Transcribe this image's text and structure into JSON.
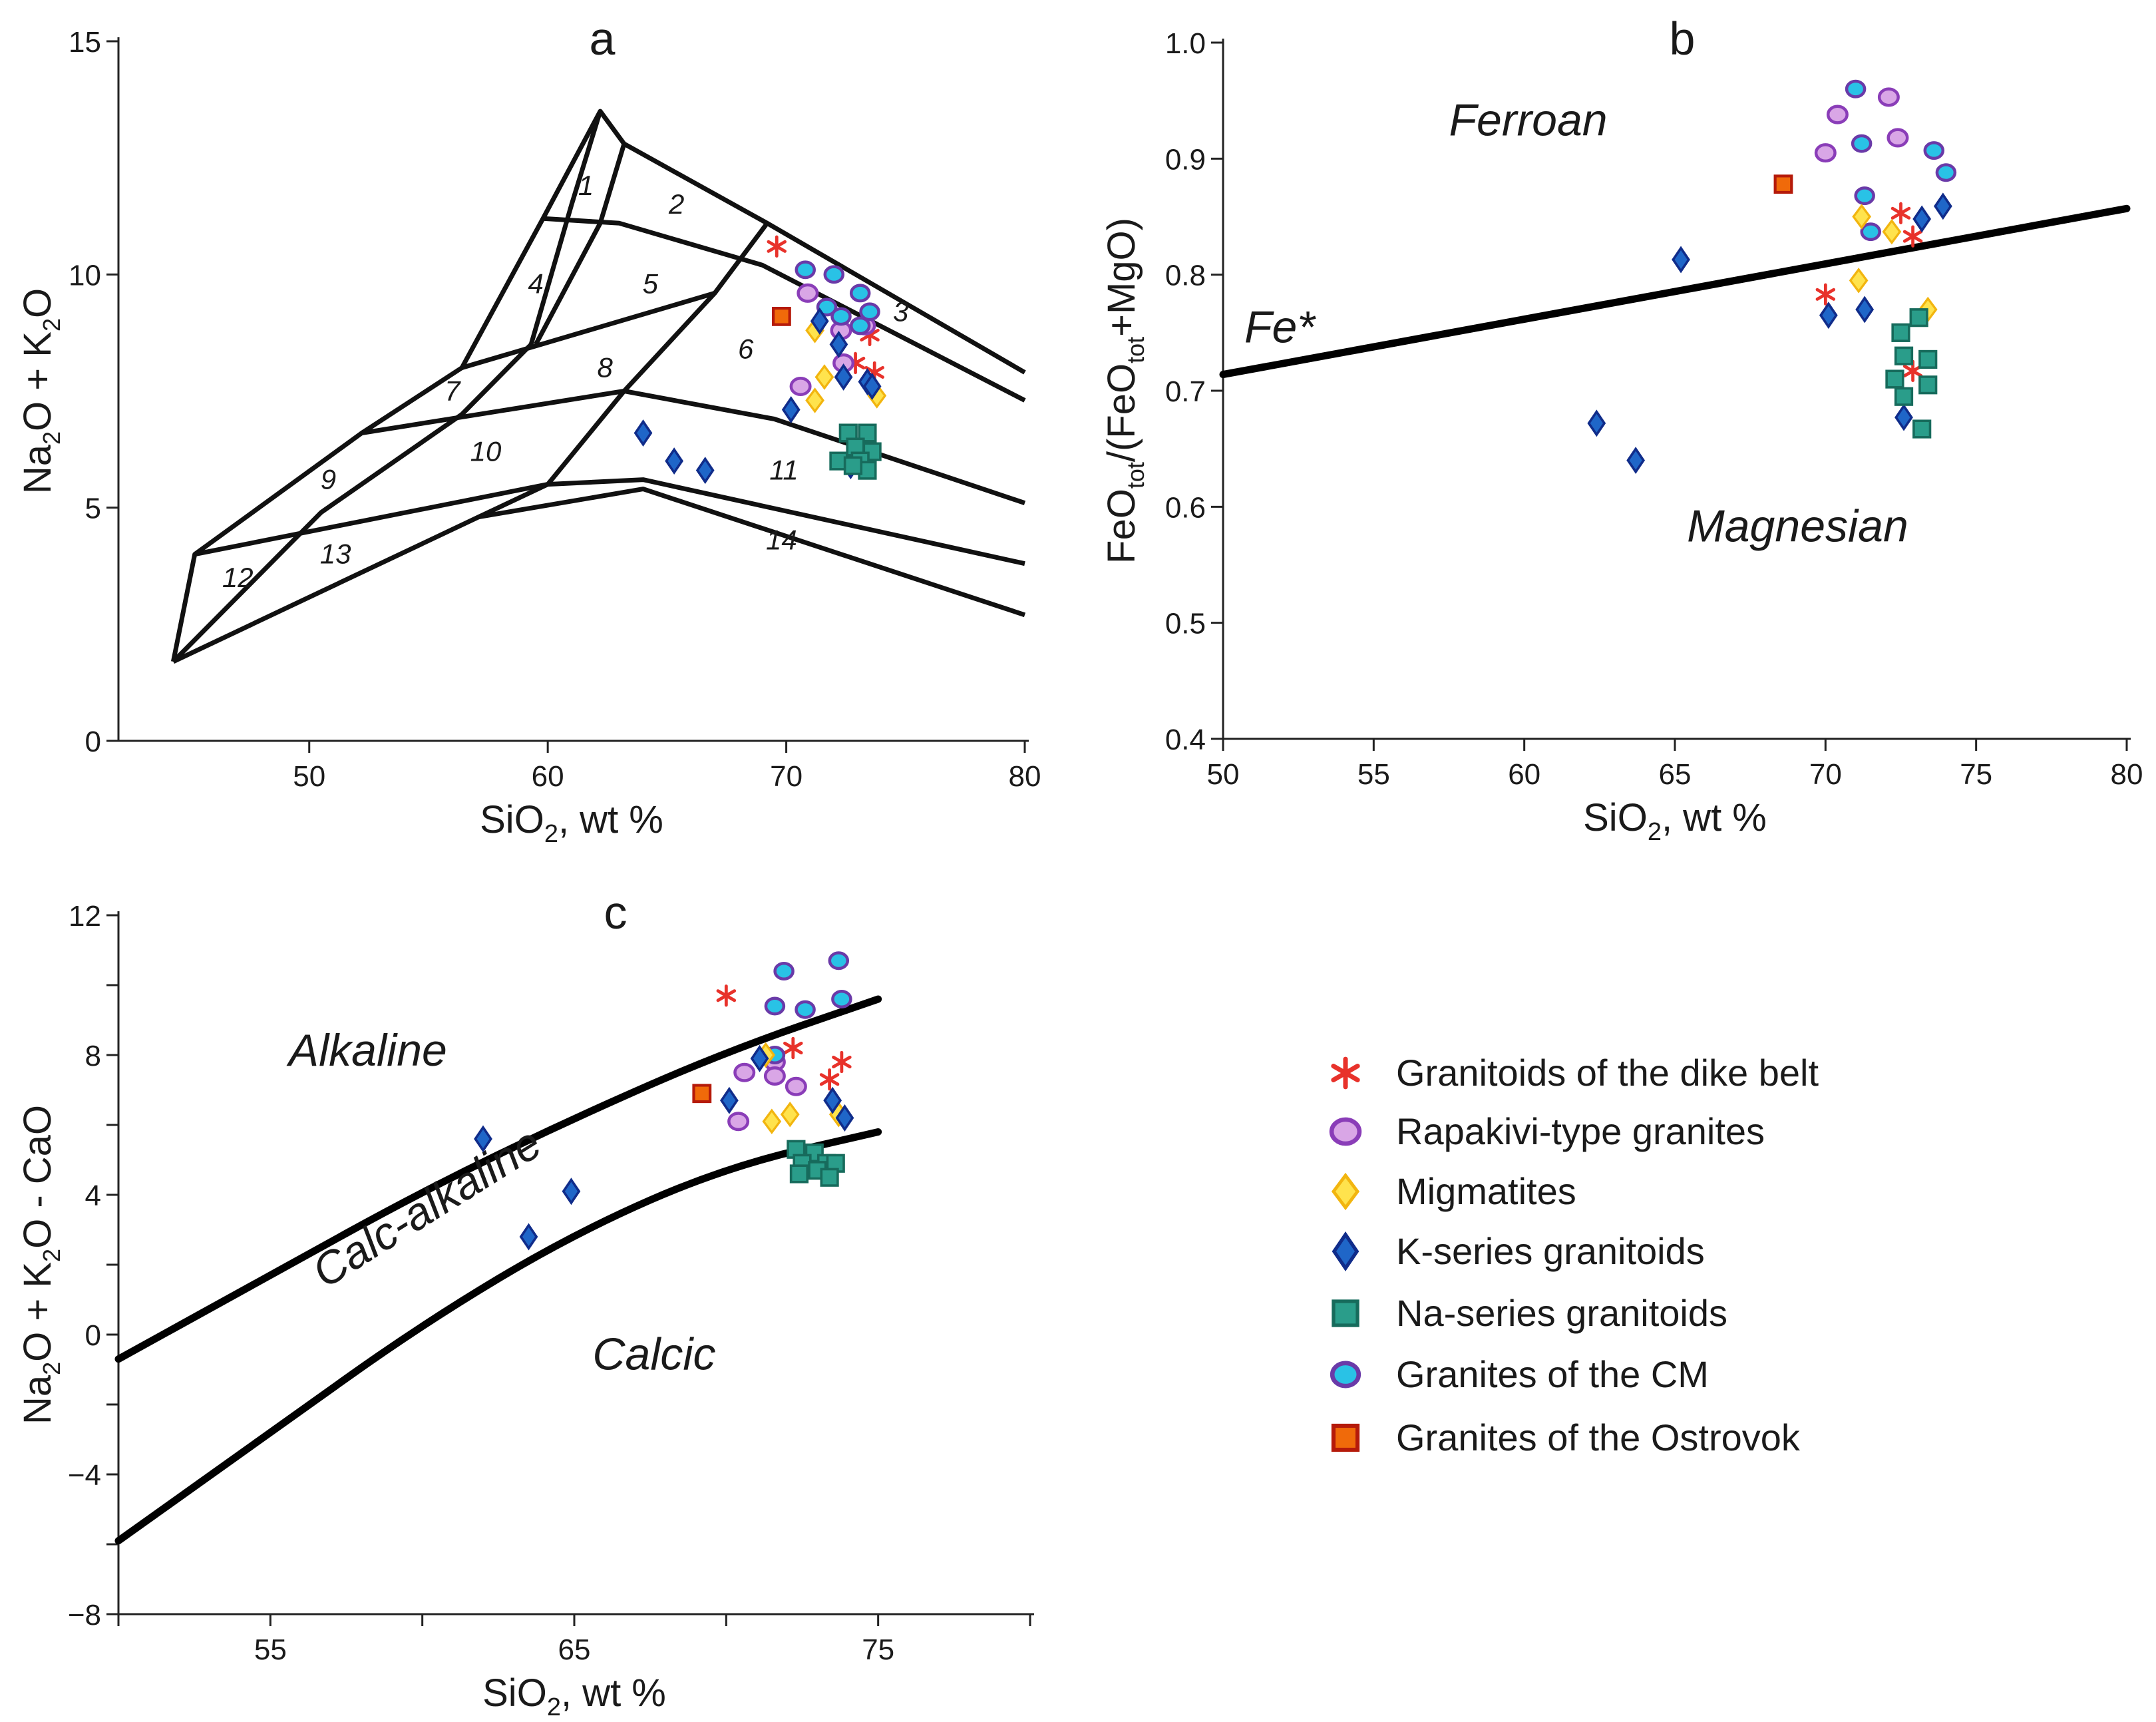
{
  "colors": {
    "dike_belt": "#e8322b",
    "rapakivi_fill": "#d9a6e6",
    "rapakivi_stroke": "#8a3db8",
    "migmatite_fill": "#ffe34d",
    "migmatite_stroke": "#f2b50f",
    "kseries_fill": "#1f66c8",
    "kseries_stroke": "#102c8a",
    "naseries_fill": "#2a9d8a",
    "naseries_stroke": "#176b5c",
    "cm_fill": "#29c2e6",
    "cm_stroke": "#6a3aa8",
    "ostrovok_fill": "#f06a0a",
    "ostrovok_stroke": "#b51a0a"
  },
  "legend": [
    {
      "key": "dike_belt",
      "label": "Granitoids of the dike belt",
      "marker": "asterisk-icon"
    },
    {
      "key": "rapakivi",
      "label": "Rapakivi-type granites",
      "marker": "circle-icon"
    },
    {
      "key": "migmatite",
      "label": "Migmatites",
      "marker": "diamond-icon"
    },
    {
      "key": "kseries",
      "label": "K-series granitoids",
      "marker": "diamond-icon"
    },
    {
      "key": "naseries",
      "label": "Na-series granitoids",
      "marker": "square-icon"
    },
    {
      "key": "cm",
      "label": "Granites of the CM",
      "marker": "circle-icon"
    },
    {
      "key": "ostrovok",
      "label": "Granites of the Ostrovok",
      "marker": "square-icon"
    }
  ],
  "chart_data": [
    {
      "id": "a",
      "type": "scatter",
      "title": "a",
      "xlabel": "SiO₂, wt %",
      "ylabel": "Na₂O + K₂O",
      "xlim": [
        42,
        80
      ],
      "ylim": [
        0,
        15
      ],
      "xticks": [
        50,
        60,
        70,
        80
      ],
      "yticks": [
        0,
        5,
        10,
        15
      ],
      "xtick_labels": [
        "50",
        "60",
        "70",
        "80"
      ],
      "ytick_labels": [
        "0",
        "5",
        "10",
        "15"
      ],
      "field_lines": [
        [
          [
            44.3,
            1.7
          ],
          [
            45.2,
            4.0
          ],
          [
            52.2,
            6.6
          ],
          [
            56.4,
            8.0
          ],
          [
            59.8,
            11.2
          ],
          [
            62.2,
            13.5
          ],
          [
            63.2,
            12.8
          ],
          [
            69.2,
            11.1
          ],
          [
            80,
            7.9
          ]
        ],
        [
          [
            44.3,
            1.7
          ],
          [
            57.1,
            4.8
          ],
          [
            60,
            5.5
          ],
          [
            63.2,
            7.5
          ],
          [
            67,
            9.6
          ],
          [
            69.2,
            11.1
          ]
        ],
        [
          [
            57.1,
            4.8
          ],
          [
            64,
            5.4
          ],
          [
            80,
            2.7
          ]
        ],
        [
          [
            45.2,
            4.0
          ],
          [
            60,
            5.5
          ],
          [
            64,
            5.6
          ],
          [
            80,
            3.8
          ]
        ],
        [
          [
            52.2,
            6.6
          ],
          [
            63.2,
            7.5
          ],
          [
            69.5,
            6.9
          ],
          [
            80,
            5.1
          ]
        ],
        [
          [
            56.4,
            8.0
          ],
          [
            67,
            9.6
          ]
        ],
        [
          [
            59.8,
            11.2
          ],
          [
            63,
            11.1
          ],
          [
            69,
            10.2
          ],
          [
            80,
            7.3
          ]
        ],
        [
          [
            62.2,
            13.5
          ],
          [
            61,
            11.5
          ],
          [
            59.3,
            8.5
          ],
          [
            56.4,
            7.0
          ],
          [
            50.5,
            4.9
          ],
          [
            44.3,
            1.7
          ]
        ],
        [
          [
            63.2,
            12.8
          ],
          [
            62.2,
            11.1
          ],
          [
            59.5,
            8.5
          ]
        ]
      ],
      "field_labels": [
        {
          "text": "1",
          "x": 61.6,
          "y": 11.9
        },
        {
          "text": "2",
          "x": 65.4,
          "y": 11.5
        },
        {
          "text": "3",
          "x": 74.8,
          "y": 9.2
        },
        {
          "text": "4",
          "x": 59.5,
          "y": 9.8
        },
        {
          "text": "5",
          "x": 64.3,
          "y": 9.8
        },
        {
          "text": "6",
          "x": 68.3,
          "y": 8.4
        },
        {
          "text": "7",
          "x": 56.0,
          "y": 7.5
        },
        {
          "text": "8",
          "x": 62.4,
          "y": 8.0
        },
        {
          "text": "9",
          "x": 50.8,
          "y": 5.6
        },
        {
          "text": "10",
          "x": 57.4,
          "y": 6.2
        },
        {
          "text": "11",
          "x": 69.9,
          "y": 5.8
        },
        {
          "text": "12",
          "x": 47.0,
          "y": 3.5
        },
        {
          "text": "13",
          "x": 51.1,
          "y": 4.0
        },
        {
          "text": "14",
          "x": 69.8,
          "y": 4.3
        }
      ],
      "series": [
        {
          "key": "dike_belt",
          "x": [
            69.6,
            73.5,
            72.9,
            73.7
          ],
          "y": [
            10.6,
            8.7,
            8.1,
            7.9
          ]
        },
        {
          "key": "rapakivi",
          "x": [
            70.9,
            72.3,
            70.6,
            72.4,
            73.3
          ],
          "y": [
            9.6,
            8.8,
            7.6,
            8.1,
            8.9
          ]
        },
        {
          "key": "cm",
          "x": [
            70.8,
            72.0,
            73.1,
            73.5,
            71.7,
            72.3,
            73.1
          ],
          "y": [
            10.1,
            10.0,
            9.6,
            9.2,
            9.3,
            9.1,
            8.9
          ]
        },
        {
          "key": "migmatite",
          "x": [
            71.2,
            71.6,
            71.2,
            73.8
          ],
          "y": [
            8.8,
            7.8,
            7.3,
            7.4
          ]
        },
        {
          "key": "kseries",
          "x": [
            71.4,
            72.2,
            72.4,
            73.4,
            73.6,
            70.2,
            64.0,
            65.3,
            66.6,
            72.7
          ],
          "y": [
            9.0,
            8.5,
            7.8,
            7.7,
            7.6,
            7.1,
            6.6,
            6.0,
            5.8,
            5.9
          ]
        },
        {
          "key": "naseries",
          "x": [
            72.6,
            73.4,
            72.9,
            73.6,
            72.2,
            73.1,
            73.4,
            72.8
          ],
          "y": [
            6.6,
            6.6,
            6.3,
            6.2,
            6.0,
            6.0,
            5.8,
            5.9
          ]
        },
        {
          "key": "ostrovok",
          "x": [
            69.8
          ],
          "y": [
            9.1
          ]
        }
      ]
    },
    {
      "id": "b",
      "type": "scatter",
      "title": "b",
      "xlabel": "SiO₂, wt %",
      "ylabel": "FeO_tot/(FeO_tot+MgO)",
      "xlim": [
        50,
        80
      ],
      "ylim": [
        0.4,
        1.0
      ],
      "xticks": [
        50,
        55,
        60,
        65,
        70,
        75,
        80
      ],
      "yticks": [
        0.4,
        0.5,
        0.6,
        0.7,
        0.8,
        0.9,
        1.0
      ],
      "xtick_labels": [
        "50",
        "55",
        "60",
        "65",
        "70",
        "75",
        "80"
      ],
      "ytick_labels": [
        "0.4",
        "0.5",
        "0.6",
        "0.7",
        "0.8",
        "0.9",
        "1.0"
      ],
      "boundary": {
        "label": "Fe*",
        "points": [
          [
            50,
            0.714
          ],
          [
            80,
            0.857
          ]
        ]
      },
      "regions": [
        {
          "text": "Ferroan",
          "x": 57.5,
          "y": 0.92
        },
        {
          "text": "Magnesian",
          "x": 65.4,
          "y": 0.57
        }
      ],
      "series": [
        {
          "key": "dike_belt",
          "x": [
            72.5,
            72.9,
            70.0,
            72.9
          ],
          "y": [
            0.853,
            0.833,
            0.783,
            0.717
          ]
        },
        {
          "key": "rapakivi",
          "x": [
            70.4,
            72.1,
            70.0,
            72.4
          ],
          "y": [
            0.938,
            0.953,
            0.905,
            0.918
          ]
        },
        {
          "key": "cm",
          "x": [
            71.0,
            71.2,
            73.6,
            74.0,
            71.3,
            71.5
          ],
          "y": [
            0.96,
            0.913,
            0.907,
            0.888,
            0.868,
            0.837
          ]
        },
        {
          "key": "migmatite",
          "x": [
            71.2,
            72.2,
            71.1,
            73.4
          ],
          "y": [
            0.85,
            0.837,
            0.795,
            0.77
          ]
        },
        {
          "key": "kseries",
          "x": [
            65.2,
            70.1,
            71.3,
            73.2,
            73.9,
            72.6,
            62.4,
            63.7
          ],
          "y": [
            0.813,
            0.765,
            0.77,
            0.848,
            0.859,
            0.677,
            0.672,
            0.64
          ]
        },
        {
          "key": "naseries",
          "x": [
            72.5,
            73.1,
            72.6,
            73.4,
            72.3,
            73.4,
            72.6,
            73.2
          ],
          "y": [
            0.75,
            0.763,
            0.73,
            0.727,
            0.71,
            0.705,
            0.695,
            0.667
          ]
        },
        {
          "key": "ostrovok",
          "x": [
            68.6
          ],
          "y": [
            0.878
          ]
        }
      ]
    },
    {
      "id": "c",
      "type": "scatter",
      "title": "c",
      "xlabel": "SiO₂, wt %",
      "ylabel": "Na₂O + K₂O - CaO",
      "xlim": [
        50,
        80
      ],
      "ylim": [
        -8,
        12
      ],
      "xticks": [
        50,
        55,
        60,
        65,
        70,
        75,
        80
      ],
      "yticks": [
        -8,
        -6,
        -4,
        -2,
        0,
        2,
        4,
        6,
        8,
        10,
        12
      ],
      "xtick_labels": [
        "",
        "55",
        "",
        "65",
        "",
        "75",
        ""
      ],
      "ytick_labels": [
        "−8",
        "",
        "−4",
        "",
        "0",
        "",
        "4",
        "",
        "8",
        "",
        "12"
      ],
      "boundaries": [
        {
          "points": [
            [
              50,
              -0.7
            ],
            [
              55,
              1.7
            ],
            [
              60,
              4.1
            ],
            [
              65,
              6.2
            ],
            [
              70,
              8.1
            ],
            [
              75,
              9.6
            ]
          ]
        },
        {
          "points": [
            [
              50,
              -5.9
            ],
            [
              55,
              -2.8
            ],
            [
              60,
              0.3
            ],
            [
              65,
              2.9
            ],
            [
              70,
              4.8
            ],
            [
              75,
              5.8
            ]
          ]
        }
      ],
      "regions": [
        {
          "text": "Alkaline",
          "x": 55.6,
          "y": 7.7,
          "rotate": 0
        },
        {
          "text": "Calc-alkaline",
          "x": 56.8,
          "y": 1.3,
          "rotate": -32
        },
        {
          "text": "Calcic",
          "x": 65.6,
          "y": -1.0,
          "rotate": 0
        }
      ],
      "series": [
        {
          "key": "dike_belt",
          "x": [
            70.0,
            72.2,
            73.4,
            73.8
          ],
          "y": [
            9.7,
            8.2,
            7.3,
            7.8
          ]
        },
        {
          "key": "rapakivi",
          "x": [
            70.6,
            71.6,
            71.6,
            72.3,
            70.4
          ],
          "y": [
            7.5,
            7.8,
            7.4,
            7.1,
            6.1
          ]
        },
        {
          "key": "cm",
          "x": [
            71.9,
            73.7,
            71.6,
            72.6,
            73.8,
            71.6
          ],
          "y": [
            10.4,
            10.7,
            9.4,
            9.3,
            9.6,
            8.0
          ]
        },
        {
          "key": "migmatite",
          "x": [
            71.3,
            71.5,
            72.1,
            73.7
          ],
          "y": [
            8.0,
            6.1,
            6.3,
            6.3
          ]
        },
        {
          "key": "kseries",
          "x": [
            62.0,
            63.5,
            64.9,
            70.1,
            71.1,
            73.5,
            73.9
          ],
          "y": [
            5.6,
            2.8,
            4.1,
            6.7,
            7.9,
            6.7,
            6.2
          ]
        },
        {
          "key": "naseries",
          "x": [
            72.3,
            72.9,
            73.3,
            72.5,
            73.0,
            73.6,
            72.4,
            73.4
          ],
          "y": [
            5.3,
            5.2,
            4.9,
            4.9,
            4.7,
            4.9,
            4.6,
            4.5
          ]
        },
        {
          "key": "ostrovok",
          "x": [
            69.2
          ],
          "y": [
            6.9
          ]
        }
      ]
    }
  ]
}
